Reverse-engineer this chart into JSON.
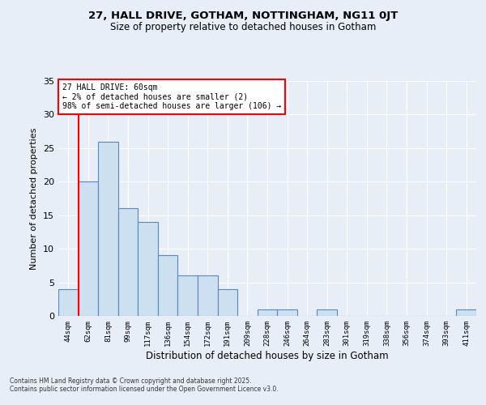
{
  "title1": "27, HALL DRIVE, GOTHAM, NOTTINGHAM, NG11 0JT",
  "title2": "Size of property relative to detached houses in Gotham",
  "xlabel": "Distribution of detached houses by size in Gotham",
  "ylabel": "Number of detached properties",
  "bins": [
    "44sqm",
    "62sqm",
    "81sqm",
    "99sqm",
    "117sqm",
    "136sqm",
    "154sqm",
    "172sqm",
    "191sqm",
    "209sqm",
    "228sqm",
    "246sqm",
    "264sqm",
    "283sqm",
    "301sqm",
    "319sqm",
    "338sqm",
    "356sqm",
    "374sqm",
    "393sqm",
    "411sqm"
  ],
  "values": [
    4,
    20,
    26,
    16,
    14,
    9,
    6,
    6,
    4,
    0,
    1,
    1,
    0,
    1,
    0,
    0,
    0,
    0,
    0,
    0,
    1
  ],
  "bar_color": "#cce0f0",
  "bar_edge_color": "#5588bb",
  "bg_color": "#e8eef8",
  "grid_color": "#ffffff",
  "red_line_x": 0.5,
  "annotation_title": "27 HALL DRIVE: 60sqm",
  "annotation_line1": "← 2% of detached houses are smaller (2)",
  "annotation_line2": "98% of semi-detached houses are larger (106) →",
  "footer1": "Contains HM Land Registry data © Crown copyright and database right 2025.",
  "footer2": "Contains public sector information licensed under the Open Government Licence v3.0.",
  "ylim": [
    0,
    35
  ],
  "yticks": [
    0,
    5,
    10,
    15,
    20,
    25,
    30,
    35
  ]
}
